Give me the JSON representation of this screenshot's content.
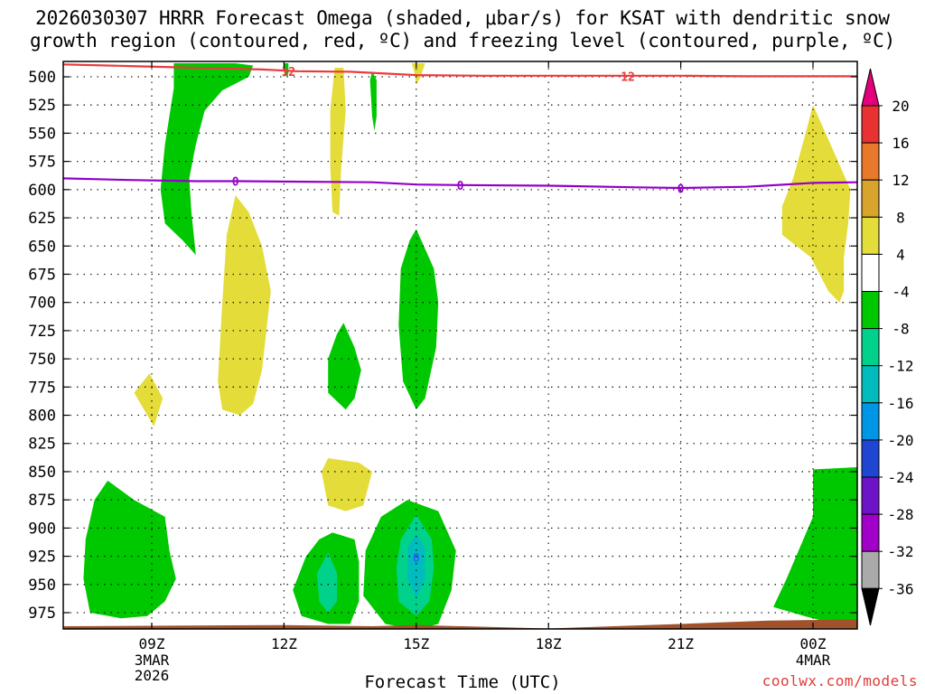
{
  "title_line1": "2026030307 HRRR Forecast Omega (shaded, μbar/s) for KSAT with dendritic snow",
  "title_line2": "growth region (contoured, red, ºC) and freezing level (contoured, purple, ºC)",
  "credit": "coolwx.com/models",
  "chart_data": {
    "type": "heatmap",
    "title": "2026030307 HRRR Forecast Omega (shaded, μbar/s) for KSAT with dendritic snow growth region (contoured, red, ºC) and freezing level (contoured, purple, ºC)",
    "xlabel": "Forecast Time (UTC)",
    "ylabel": "",
    "x_range_hours": [
      7,
      25
    ],
    "y_range_hpa": [
      490,
      990
    ],
    "y_ticks": [
      500,
      525,
      550,
      575,
      600,
      625,
      650,
      675,
      700,
      725,
      750,
      775,
      800,
      825,
      850,
      875,
      900,
      925,
      950,
      975
    ],
    "x_ticks": [
      {
        "hour": 9,
        "label": "09Z",
        "sub": [
          "3MAR",
          "2026"
        ]
      },
      {
        "hour": 12,
        "label": "12Z",
        "sub": []
      },
      {
        "hour": 15,
        "label": "15Z",
        "sub": []
      },
      {
        "hour": 18,
        "label": "18Z",
        "sub": []
      },
      {
        "hour": 21,
        "label": "21Z",
        "sub": []
      },
      {
        "hour": 24,
        "label": "00Z",
        "sub": [
          "4MAR"
        ]
      }
    ],
    "grid": true,
    "legend": {
      "placement": "right",
      "levels": [
        20,
        16,
        12,
        8,
        4,
        -4,
        -8,
        -12,
        -16,
        -20,
        -24,
        -28,
        -32,
        -36
      ],
      "colors": [
        "#e4007c",
        "#e83232",
        "#e8782a",
        "#d8a42c",
        "#e4dc38",
        "#ffffff",
        "#00c800",
        "#00d28c",
        "#00bcbc",
        "#0096e6",
        "#1e46d2",
        "#6e14c8",
        "#a000c8",
        "#aaaaaa",
        "#000000"
      ]
    },
    "contours": [
      {
        "name": "dendritic snow growth region",
        "color": "#e83c3c",
        "value": -12,
        "label": "12",
        "points": [
          [
            7,
            489
          ],
          [
            8.5,
            490.5
          ],
          [
            10,
            492
          ],
          [
            11.5,
            493.5
          ],
          [
            12.3,
            495
          ],
          [
            13.5,
            495.5
          ],
          [
            15,
            498.5
          ],
          [
            16.5,
            499
          ],
          [
            18,
            499
          ],
          [
            19.5,
            499
          ],
          [
            21,
            499
          ],
          [
            22.5,
            499.5
          ],
          [
            24,
            499.5
          ],
          [
            25,
            499.5
          ]
        ]
      },
      {
        "name": "freezing level",
        "color": "#9400c8",
        "value": 0,
        "label": "0",
        "points": [
          [
            7,
            590
          ],
          [
            8.5,
            591.5
          ],
          [
            10,
            592.5
          ],
          [
            11,
            592.5
          ],
          [
            12.5,
            593
          ],
          [
            14,
            593.5
          ],
          [
            15,
            595.5
          ],
          [
            16,
            596
          ],
          [
            18,
            596.5
          ],
          [
            20,
            598
          ],
          [
            21,
            598.5
          ],
          [
            22.5,
            597.5
          ],
          [
            24,
            594
          ],
          [
            25,
            593.5
          ]
        ]
      }
    ],
    "contour_labels": [
      {
        "text": "12",
        "x": 12.1,
        "y": 495,
        "color": "#e83c3c"
      },
      {
        "text": "12",
        "x": 19.8,
        "y": 499.5,
        "color": "#e83c3c"
      },
      {
        "text": "0",
        "x": 10.9,
        "y": 592.5,
        "color": "#9400c8"
      },
      {
        "text": "0",
        "x": 16.0,
        "y": 596,
        "color": "#9400c8"
      },
      {
        "text": "0",
        "x": 21.0,
        "y": 599,
        "color": "#9400c8"
      },
      {
        "text": "0",
        "x": 15.0,
        "y": 926,
        "color": "#2864ff"
      }
    ],
    "shaded_regions": [
      {
        "name": "upward motion band",
        "level": -8,
        "color": "#00c800",
        "points": [
          [
            9.5,
            488
          ],
          [
            10.2,
            488
          ],
          [
            10.9,
            488
          ],
          [
            11.3,
            490
          ],
          [
            11.2,
            500
          ],
          [
            10.6,
            512
          ],
          [
            10.2,
            530
          ],
          [
            10.0,
            560
          ],
          [
            9.85,
            590
          ],
          [
            9.9,
            620
          ],
          [
            10.0,
            658
          ],
          [
            9.7,
            645
          ],
          [
            9.3,
            630
          ],
          [
            9.2,
            600
          ],
          [
            9.3,
            560
          ],
          [
            9.5,
            510
          ]
        ]
      },
      {
        "name": "upper narrow upward motion",
        "level": -8,
        "color": "#00c800",
        "points": [
          [
            12.0,
            488
          ],
          [
            12.1,
            488
          ],
          [
            12.1,
            497
          ],
          [
            12.05,
            500
          ],
          [
            12.0,
            492
          ]
        ]
      },
      {
        "name": "narrow updraft 14Z",
        "level": -8,
        "color": "#00c800",
        "points": [
          [
            14.0,
            495
          ],
          [
            14.1,
            503
          ],
          [
            14.1,
            535
          ],
          [
            14.05,
            548
          ],
          [
            14.0,
            535
          ],
          [
            13.95,
            503
          ]
        ]
      },
      {
        "name": "sinking column 13Z",
        "level": 4,
        "color": "#e4dc38",
        "points": [
          [
            13.15,
            492
          ],
          [
            13.35,
            492
          ],
          [
            13.4,
            530
          ],
          [
            13.3,
            580
          ],
          [
            13.25,
            623
          ],
          [
            13.1,
            620
          ],
          [
            13.05,
            580
          ],
          [
            13.05,
            530
          ]
        ]
      },
      {
        "name": "sinking 15Z top",
        "level": 4,
        "color": "#e4dc38",
        "points": [
          [
            14.9,
            488
          ],
          [
            15.2,
            488
          ],
          [
            15.1,
            500
          ],
          [
            15.0,
            507
          ],
          [
            14.95,
            495
          ]
        ]
      },
      {
        "name": "sinking 11Z",
        "level": 4,
        "color": "#e4dc38",
        "points": [
          [
            10.9,
            605
          ],
          [
            11.2,
            620
          ],
          [
            11.5,
            650
          ],
          [
            11.7,
            690
          ],
          [
            11.5,
            760
          ],
          [
            11.3,
            790
          ],
          [
            11.0,
            800
          ],
          [
            10.6,
            795
          ],
          [
            10.5,
            770
          ],
          [
            10.6,
            700
          ],
          [
            10.7,
            640
          ]
        ]
      },
      {
        "name": "sinking 09Z small",
        "level": 4,
        "color": "#e4dc38",
        "points": [
          [
            8.95,
            763
          ],
          [
            9.25,
            785
          ],
          [
            9.05,
            810
          ],
          [
            8.6,
            780
          ]
        ]
      },
      {
        "name": "updraft 13Z mid",
        "level": -8,
        "color": "#00c800",
        "points": [
          [
            13.35,
            718
          ],
          [
            13.6,
            740
          ],
          [
            13.75,
            760
          ],
          [
            13.6,
            785
          ],
          [
            13.4,
            795
          ],
          [
            13.0,
            780
          ],
          [
            13.0,
            750
          ],
          [
            13.2,
            728
          ]
        ]
      },
      {
        "name": "updraft 15Z mid",
        "level": -8,
        "color": "#00c800",
        "points": [
          [
            15.0,
            635
          ],
          [
            15.4,
            670
          ],
          [
            15.5,
            700
          ],
          [
            15.45,
            740
          ],
          [
            15.2,
            785
          ],
          [
            15.0,
            795
          ],
          [
            14.7,
            770
          ],
          [
            14.6,
            720
          ],
          [
            14.65,
            670
          ],
          [
            14.85,
            645
          ]
        ]
      },
      {
        "name": "sinking 13Z low",
        "level": 4,
        "color": "#e4dc38",
        "points": [
          [
            13.0,
            838
          ],
          [
            13.7,
            842
          ],
          [
            14.0,
            850
          ],
          [
            13.8,
            880
          ],
          [
            13.4,
            885
          ],
          [
            13.0,
            880
          ],
          [
            12.85,
            850
          ]
        ]
      },
      {
        "name": "updraft 08Z low",
        "level": -8,
        "color": "#00c800",
        "points": [
          [
            8.0,
            858
          ],
          [
            8.6,
            875
          ],
          [
            9.3,
            890
          ],
          [
            9.4,
            920
          ],
          [
            9.55,
            945
          ],
          [
            9.3,
            965
          ],
          [
            8.9,
            978
          ],
          [
            8.3,
            980
          ],
          [
            7.6,
            975
          ],
          [
            7.45,
            945
          ],
          [
            7.5,
            910
          ],
          [
            7.7,
            875
          ]
        ]
      },
      {
        "name": "updraft 13Z low",
        "level": -8,
        "color": "#00c800",
        "points": [
          [
            13.1,
            904
          ],
          [
            13.6,
            910
          ],
          [
            13.7,
            930
          ],
          [
            13.7,
            965
          ],
          [
            13.5,
            985
          ],
          [
            13.0,
            985
          ],
          [
            12.4,
            978
          ],
          [
            12.2,
            955
          ],
          [
            12.5,
            925
          ],
          [
            12.8,
            910
          ]
        ]
      },
      {
        "name": "strong updraft 13Z low core",
        "level": -12,
        "color": "#00d28c",
        "points": [
          [
            13.0,
            922
          ],
          [
            13.2,
            940
          ],
          [
            13.2,
            965
          ],
          [
            13.0,
            975
          ],
          [
            12.8,
            965
          ],
          [
            12.75,
            940
          ]
        ]
      },
      {
        "name": "updraft 15Z low",
        "level": -8,
        "color": "#00c800",
        "points": [
          [
            14.8,
            875
          ],
          [
            15.5,
            885
          ],
          [
            15.9,
            920
          ],
          [
            15.8,
            955
          ],
          [
            15.5,
            985
          ],
          [
            15.0,
            990
          ],
          [
            14.3,
            985
          ],
          [
            13.8,
            960
          ],
          [
            13.85,
            920
          ],
          [
            14.2,
            890
          ]
        ]
      },
      {
        "name": "strong updraft 15Z low core",
        "level": -12,
        "color": "#00d28c",
        "points": [
          [
            15.0,
            888
          ],
          [
            15.35,
            910
          ],
          [
            15.4,
            935
          ],
          [
            15.3,
            965
          ],
          [
            15.0,
            978
          ],
          [
            14.6,
            965
          ],
          [
            14.55,
            935
          ],
          [
            14.65,
            910
          ]
        ]
      },
      {
        "name": "stronger updraft 15Z core",
        "level": -16,
        "color": "#00bcbc",
        "points": [
          [
            15.0,
            905
          ],
          [
            15.2,
            918
          ],
          [
            15.2,
            945
          ],
          [
            15.0,
            962
          ],
          [
            14.8,
            945
          ],
          [
            14.8,
            918
          ]
        ]
      },
      {
        "name": "sinking 00Z upper",
        "level": 4,
        "color": "#e4dc38",
        "points": [
          [
            24.0,
            525
          ],
          [
            24.4,
            560
          ],
          [
            24.85,
            600
          ],
          [
            24.8,
            630
          ],
          [
            24.7,
            660
          ],
          [
            24.7,
            690
          ],
          [
            24.6,
            700
          ],
          [
            24.35,
            690
          ],
          [
            23.95,
            660
          ],
          [
            23.3,
            640
          ],
          [
            23.3,
            615
          ],
          [
            23.55,
            590
          ],
          [
            23.8,
            555
          ]
        ]
      },
      {
        "name": "updraft 00Z lower",
        "level": -8,
        "color": "#00c800",
        "points": [
          [
            24.0,
            848
          ],
          [
            25.0,
            846
          ],
          [
            25.0,
            990
          ],
          [
            24.5,
            985
          ],
          [
            23.8,
            978
          ],
          [
            23.1,
            970
          ],
          [
            23.4,
            945
          ],
          [
            24.0,
            890
          ]
        ]
      }
    ],
    "surface": {
      "name": "terrain",
      "color": "#a0522d",
      "points": [
        [
          7,
          987
        ],
        [
          12,
          986
        ],
        [
          14,
          987
        ],
        [
          15,
          986
        ],
        [
          18,
          989
        ],
        [
          21,
          985
        ],
        [
          23,
          982
        ],
        [
          25,
          981
        ]
      ]
    }
  }
}
